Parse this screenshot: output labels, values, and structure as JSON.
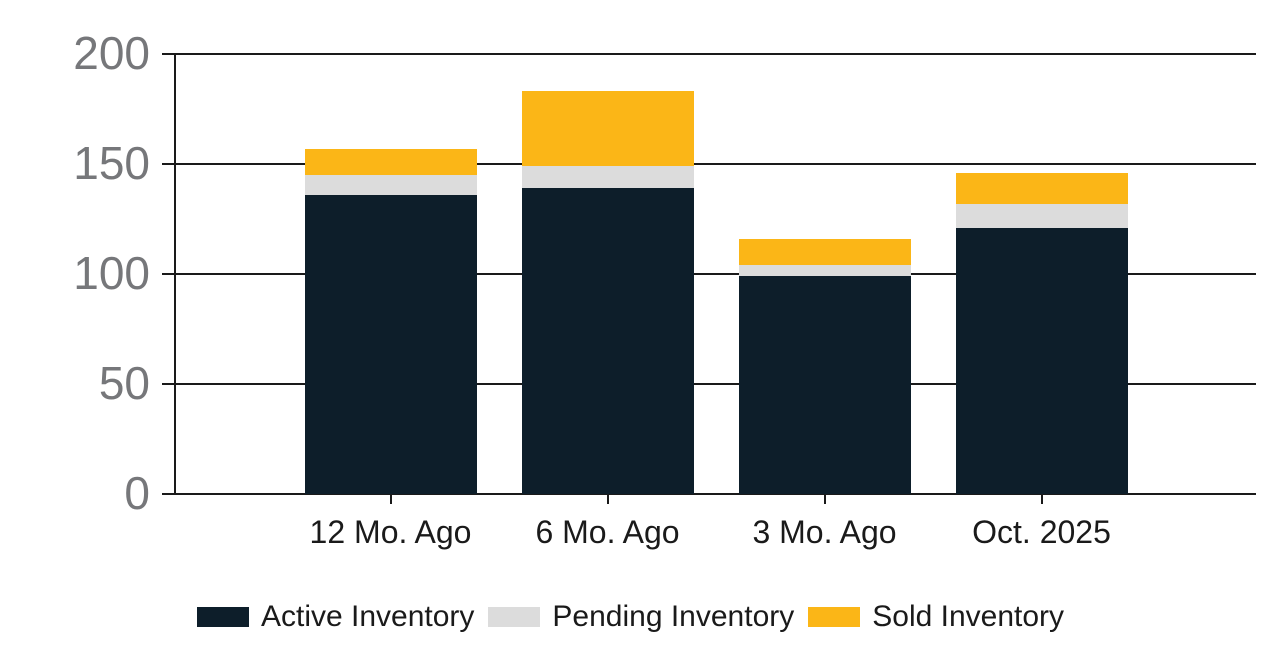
{
  "chart": {
    "background_color": "#ffffff",
    "grid_color": "#1a1a1a",
    "axis_color": "#1a1a1a",
    "y_tick_label_color": "#76777a",
    "x_tick_label_color": "#1a1a1a",
    "legend_text_color": "#1a1a1a"
  },
  "chart_data": {
    "type": "bar",
    "stacked": true,
    "title": "",
    "xlabel": "",
    "ylabel": "",
    "categories": [
      "12 Mo. Ago",
      "6 Mo. Ago",
      "3 Mo. Ago",
      "Oct. 2025"
    ],
    "series": [
      {
        "name": "Active Inventory",
        "color": "#0d1e2a",
        "values": [
          136,
          139,
          99,
          121
        ]
      },
      {
        "name": "Pending Inventory",
        "color": "#dcdcdc",
        "values": [
          9,
          10,
          5,
          11
        ]
      },
      {
        "name": "Sold Inventory",
        "color": "#fbb617",
        "values": [
          12,
          34,
          12,
          14
        ]
      }
    ],
    "stack_totals": [
      157,
      183,
      116,
      146
    ],
    "y_ticks": [
      0,
      50,
      100,
      150,
      200
    ],
    "ylim": [
      0,
      200
    ],
    "grid": "horizontal gridlines at each y tick, drawn behind bars",
    "legend_position": "bottom-center"
  }
}
